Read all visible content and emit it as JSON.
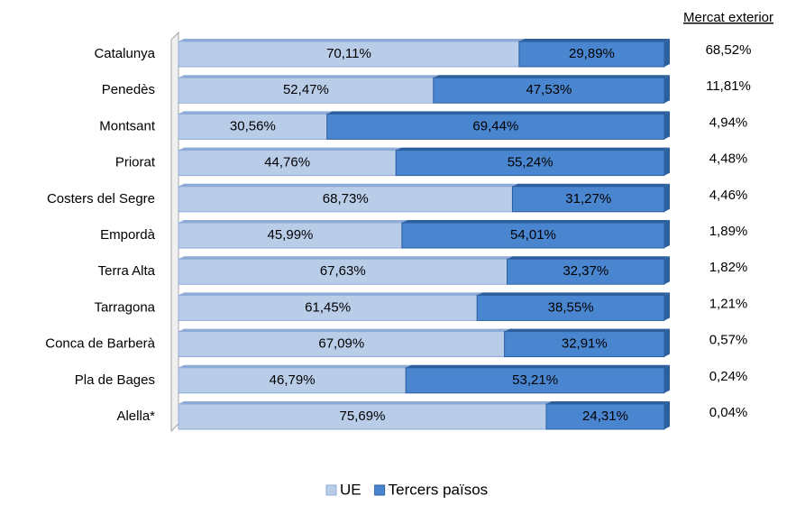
{
  "chart_data": {
    "type": "stacked_bar_h",
    "categories": [
      "Catalunya",
      "Penedès",
      "Montsant",
      "Priorat",
      "Costers del Segre",
      "Empordà",
      "Terra Alta",
      "Tarragona",
      "Conca de Barberà",
      "Pla de Bages",
      "Alella*"
    ],
    "series": [
      {
        "name": "UE",
        "color": "#b9cde9",
        "side": "#8eaad6",
        "values": [
          70.11,
          52.47,
          30.56,
          44.76,
          68.73,
          45.99,
          67.63,
          61.45,
          67.09,
          46.79,
          75.69
        ],
        "value_labels": [
          "70,11%",
          "52,47%",
          "30,56%",
          "44,76%",
          "68,73%",
          "45,99%",
          "67,63%",
          "61,45%",
          "67,09%",
          "46,79%",
          "75,69%"
        ]
      },
      {
        "name": "Tercers països",
        "color": "#4a86cf",
        "side": "#2c5f9e",
        "values": [
          29.89,
          47.53,
          69.44,
          55.24,
          31.27,
          54.01,
          32.37,
          38.55,
          32.91,
          53.21,
          24.31
        ],
        "value_labels": [
          "29,89%",
          "47,53%",
          "69,44%",
          "55,24%",
          "31,27%",
          "54,01%",
          "32,37%",
          "38,55%",
          "32,91%",
          "53,21%",
          "24,31%"
        ]
      }
    ],
    "xlim": [
      0,
      100
    ],
    "side_column": {
      "title": "Mercat exterior",
      "labels": [
        "68,52%",
        "11,81%",
        "4,94%",
        "4,48%",
        "4,46%",
        "1,89%",
        "1,82%",
        "1,21%",
        "0,57%",
        "0,24%",
        "0,04%"
      ]
    }
  }
}
